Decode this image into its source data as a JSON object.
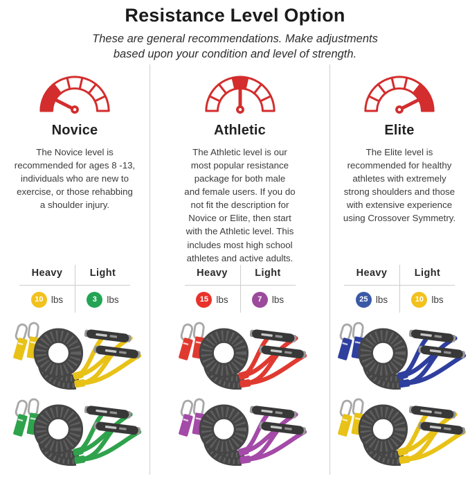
{
  "header": {
    "title": "Resistance Level Option",
    "subtitle": "These are general recommendations. Make adjustments\nbased upon your condition and level of strength."
  },
  "gauge_color": "#d32d2d",
  "divider_color": "#dccac3",
  "table_rule_color": "#cccccc",
  "columns": [
    {
      "name": "Novice",
      "gauge_variant": "low",
      "description": "The Novice level is\nrecommended for ages 8 -13,\nindividuals who are new to\nexercise, or those rehabbing\na shoulder injury.",
      "table": {
        "heavy_label": "Heavy",
        "light_label": "Light",
        "heavy": {
          "value": "10",
          "unit": "lbs",
          "color": "#f2c11e"
        },
        "light": {
          "value": "3",
          "unit": "lbs",
          "color": "#23a455"
        }
      },
      "products": [
        {
          "label": "heavy band - yellow straps",
          "strap_color": "#e8c217"
        },
        {
          "label": "light band - green straps",
          "strap_color": "#2fa24c"
        }
      ]
    },
    {
      "name": "Athletic",
      "gauge_variant": "mid",
      "description": "The Athletic level is our\nmost popular resistance\npackage for both male\nand female users. If you do\nnot fit the description for\nNovice or Elite, then start\nwith the Athletic level. This\nincludes most high school\nathletes and active adults.",
      "table": {
        "heavy_label": "Heavy",
        "light_label": "Light",
        "heavy": {
          "value": "15",
          "unit": "lbs",
          "color": "#e8332c"
        },
        "light": {
          "value": "7",
          "unit": "lbs",
          "color": "#9b4a9c"
        }
      },
      "products": [
        {
          "label": "heavy band - red straps",
          "strap_color": "#e03a30"
        },
        {
          "label": "light band - purple straps",
          "strap_color": "#a44aa8"
        }
      ]
    },
    {
      "name": "Elite",
      "gauge_variant": "high",
      "description": "The Elite level is\nrecommended for healthy\nathletes with extremely\nstrong shoulders and those\nwith extensive experience\nusing Crossover Symmetry.",
      "table": {
        "heavy_label": "Heavy",
        "light_label": "Light",
        "heavy": {
          "value": "25",
          "unit": "lbs",
          "color": "#3b59a6"
        },
        "light": {
          "value": "10",
          "unit": "lbs",
          "color": "#f2c11e"
        }
      },
      "products": [
        {
          "label": "heavy band - blue straps",
          "strap_color": "#2e3f9e"
        },
        {
          "label": "light band - yellow straps",
          "strap_color": "#e8c217"
        }
      ]
    }
  ]
}
